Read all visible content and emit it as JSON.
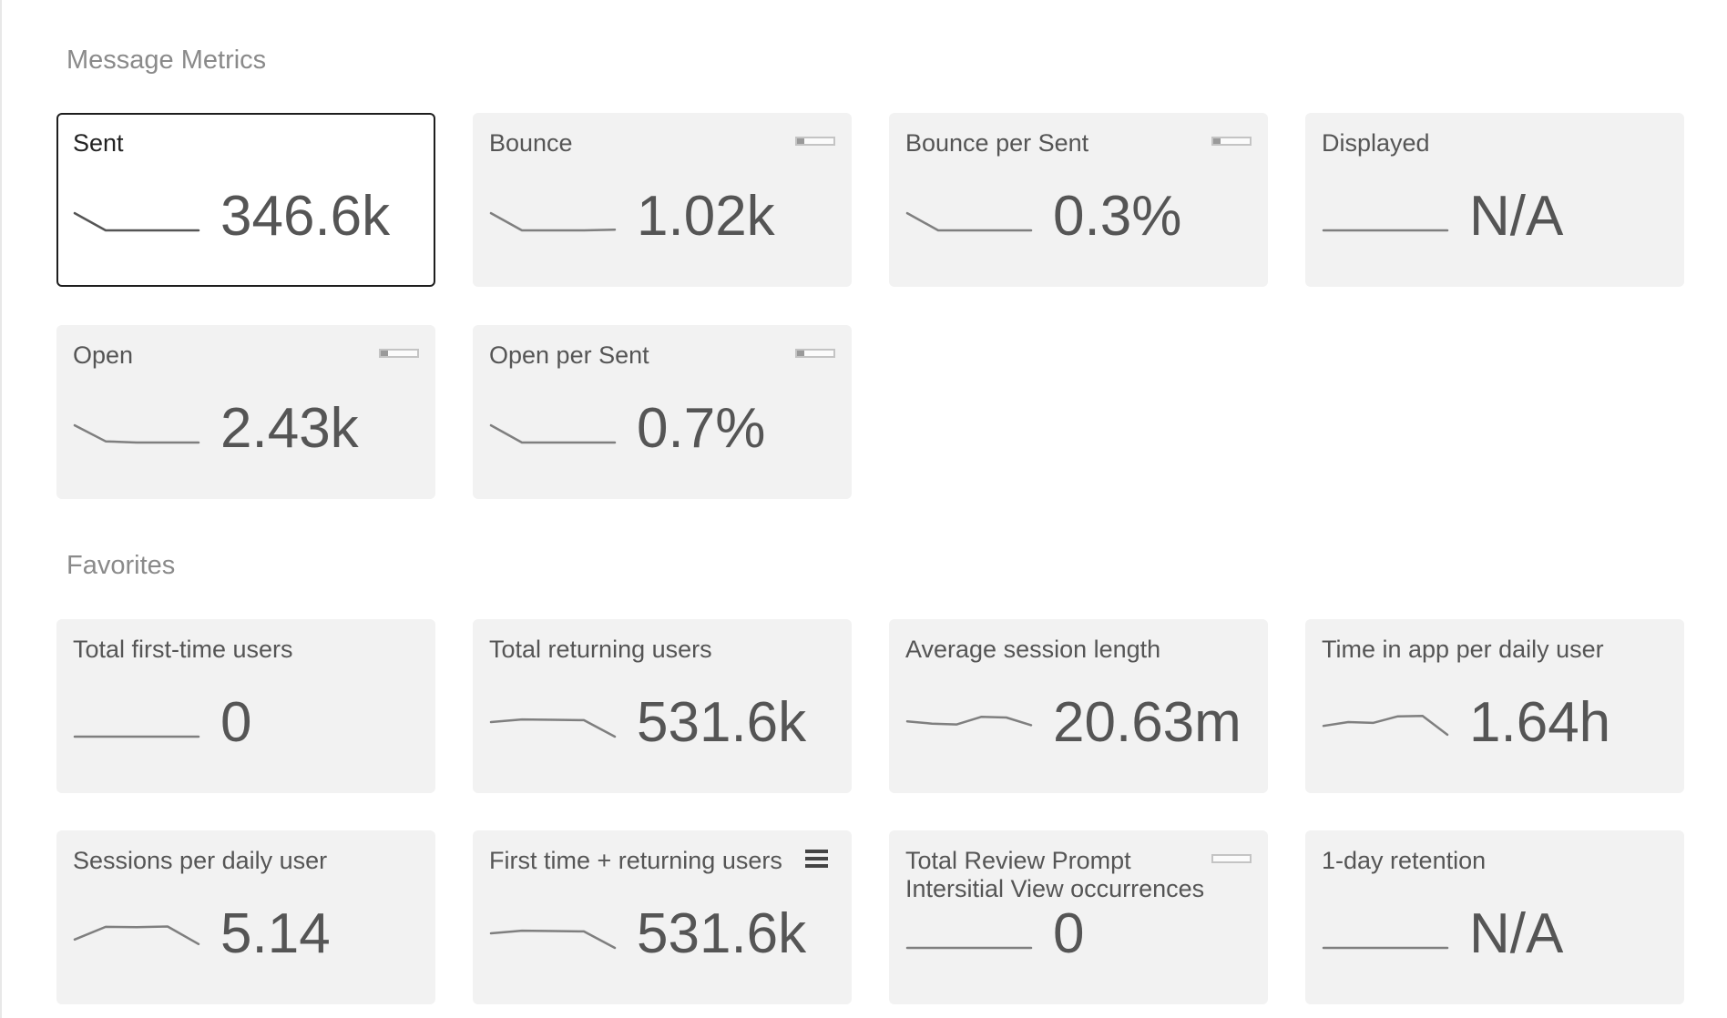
{
  "sections": [
    {
      "title": "Message Metrics",
      "cards": [
        {
          "label": "Sent",
          "value": "346.6k",
          "selected": true,
          "spark": [
            0.55,
            1,
            1,
            1,
            1
          ],
          "badge": null
        },
        {
          "label": "Bounce",
          "value": "1.02k",
          "selected": false,
          "spark": [
            0.55,
            1,
            1,
            1,
            0.98
          ],
          "badge": {
            "fill": 0.2
          }
        },
        {
          "label": "Bounce per Sent",
          "value": "0.3%",
          "selected": false,
          "spark": [
            0.55,
            1,
            1,
            1,
            1
          ],
          "badge": {
            "fill": 0.2
          }
        },
        {
          "label": "Displayed",
          "value": "N/A",
          "selected": false,
          "spark": [
            1,
            1,
            1,
            1,
            1
          ],
          "badge": null
        },
        {
          "label": "Open",
          "value": "2.43k",
          "selected": false,
          "spark": [
            0.55,
            0.97,
            1,
            1,
            1
          ],
          "badge": {
            "fill": 0.2
          }
        },
        {
          "label": "Open per Sent",
          "value": "0.7%",
          "selected": false,
          "spark": [
            0.55,
            1,
            1,
            1,
            1
          ],
          "badge": {
            "fill": 0.2
          }
        }
      ]
    },
    {
      "title": "Favorites",
      "cards": [
        {
          "label": "Total first-time users",
          "value": "0",
          "selected": false,
          "spark": [
            1,
            1,
            1,
            1,
            1
          ],
          "badge": null
        },
        {
          "label": "Total returning users",
          "value": "531.6k",
          "selected": false,
          "spark": [
            0.62,
            0.55,
            0.56,
            0.57,
            1
          ],
          "badge": null
        },
        {
          "label": "Average session length",
          "value": "20.63m",
          "selected": false,
          "spark": [
            0.6,
            0.66,
            0.68,
            0.48,
            0.5,
            0.7
          ],
          "badge": null
        },
        {
          "label": "Time in app per daily user",
          "value": "1.64h",
          "selected": false,
          "spark": [
            0.72,
            0.62,
            0.64,
            0.47,
            0.46,
            0.95
          ],
          "badge": null
        },
        {
          "label": "Sessions per daily user",
          "value": "5.14",
          "selected": false,
          "spark": [
            0.78,
            0.45,
            0.46,
            0.44,
            0.9
          ],
          "badge": null
        },
        {
          "label": "First time + returning users",
          "value": "531.6k",
          "selected": false,
          "spark": [
            0.62,
            0.55,
            0.56,
            0.57,
            1
          ],
          "badge": null,
          "menu_icon": "hamburger-menu-icon"
        },
        {
          "label": "Total Review Prompt Intersitial View occurrences",
          "value": "0",
          "selected": false,
          "spark": [
            1,
            1,
            1,
            1,
            1
          ],
          "badge": {
            "fill": 0
          }
        },
        {
          "label": "1-day retention",
          "value": "N/A",
          "selected": false,
          "spark": [
            1,
            1,
            1,
            1,
            1
          ],
          "badge": null
        }
      ]
    }
  ]
}
